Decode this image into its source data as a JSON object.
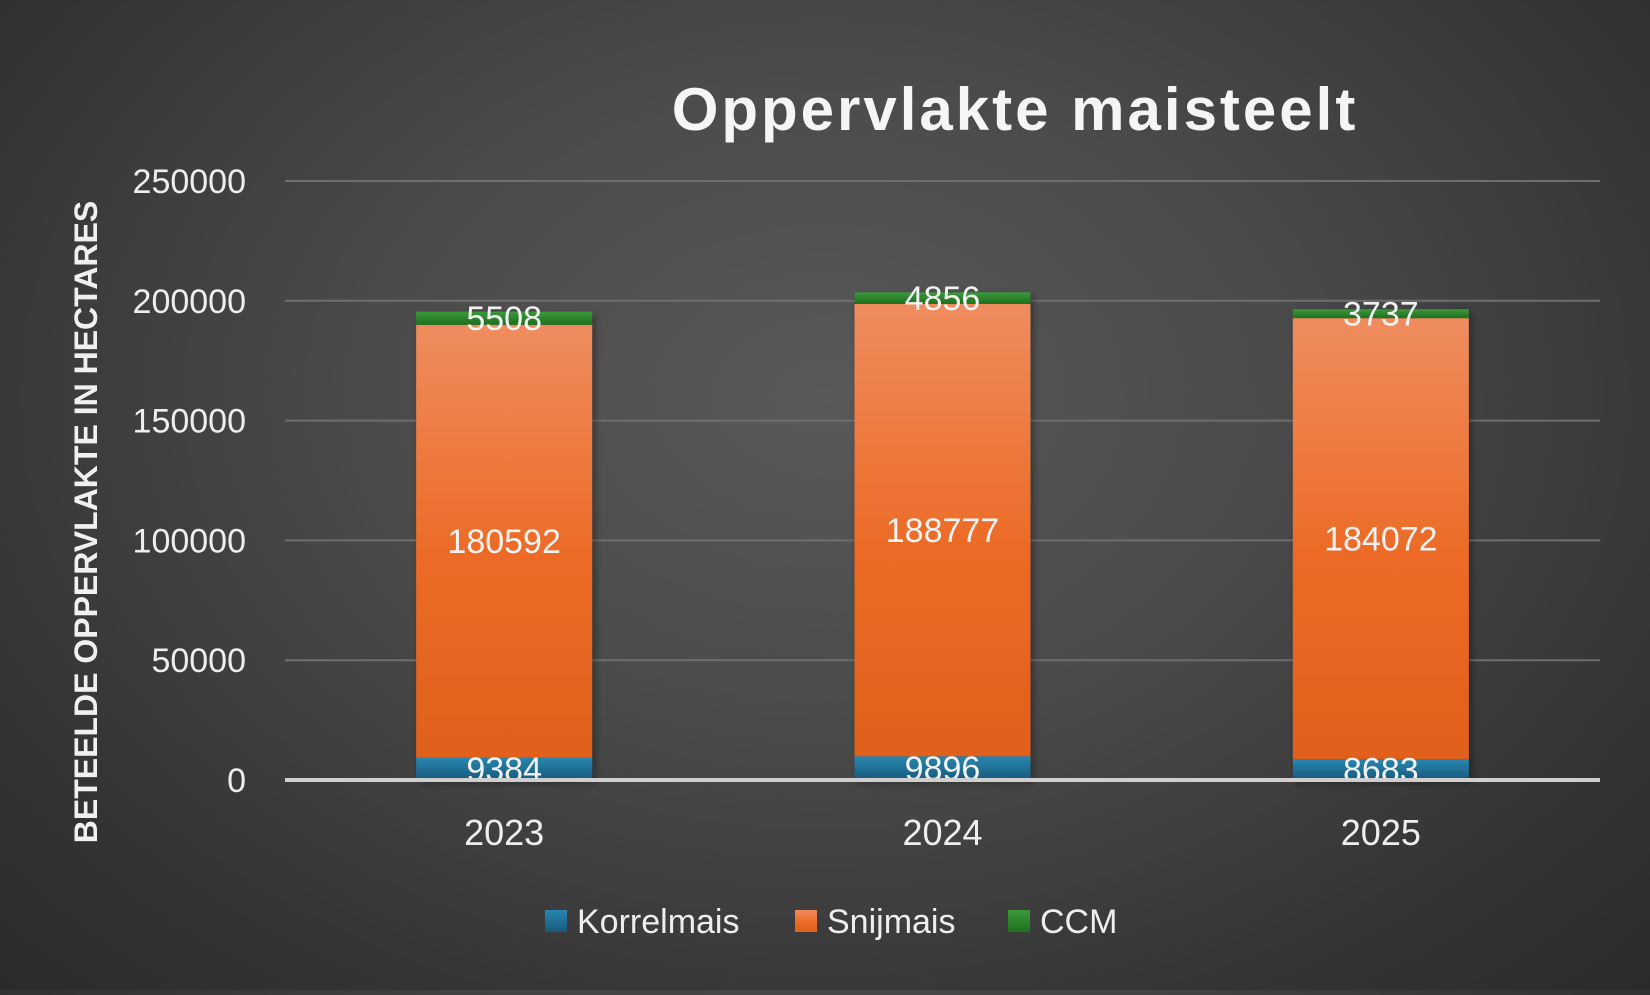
{
  "chart_data": {
    "type": "bar",
    "stacked": true,
    "title": "Oppervlakte maisteelt",
    "xlabel": "",
    "ylabel": "BETEELDE OPPERVLAKTE IN HECTARES",
    "categories": [
      "2023",
      "2024",
      "2025"
    ],
    "ylim": [
      0,
      250000
    ],
    "yticks": [
      0,
      50000,
      100000,
      150000,
      200000,
      250000
    ],
    "grid": true,
    "legend_position": "bottom",
    "series": [
      {
        "name": "Korrelmais",
        "values": [
          9384,
          9896,
          8683
        ],
        "color": "#1f6f96"
      },
      {
        "name": "Snijmais",
        "values": [
          180592,
          188777,
          184072
        ],
        "color": "#ec6a25"
      },
      {
        "name": "CCM",
        "values": [
          5508,
          4856,
          3737
        ],
        "color": "#2a8a2a"
      }
    ]
  }
}
